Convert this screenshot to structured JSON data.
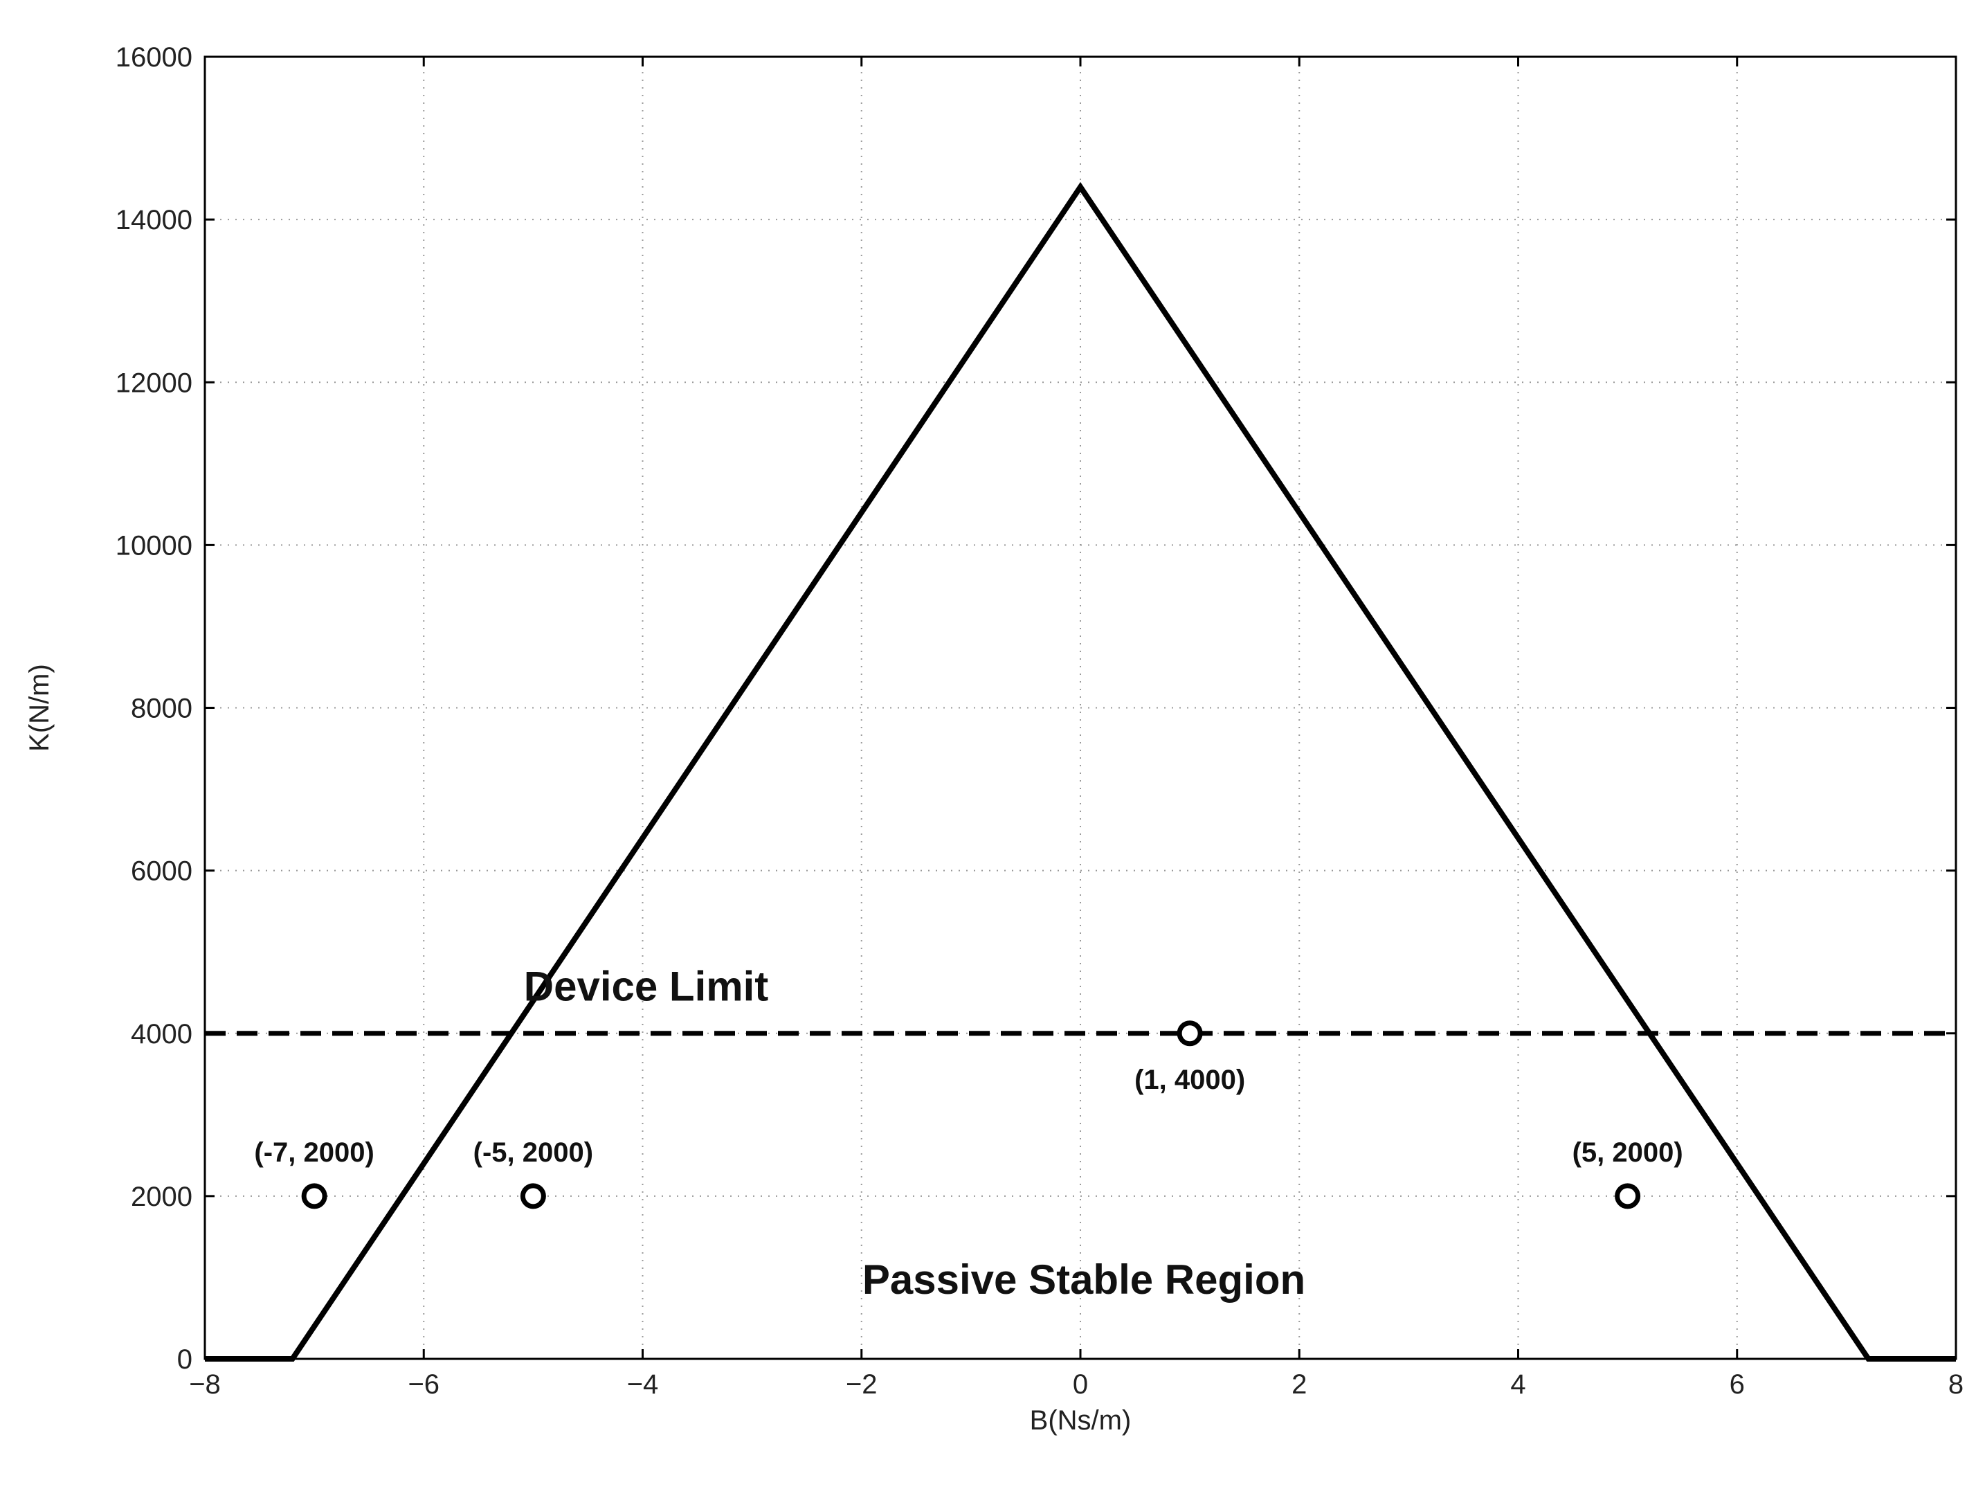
{
  "chart_data": {
    "type": "line",
    "title": "",
    "xlabel": "B(Ns/m)",
    "ylabel": "K(N/m)",
    "xlim": [
      -8,
      8
    ],
    "ylim": [
      0,
      16000
    ],
    "x_ticks": [
      -8,
      -6,
      -4,
      -2,
      0,
      2,
      4,
      6,
      8
    ],
    "x_tick_labels": [
      "−8",
      "−6",
      "−4",
      "−2",
      "0",
      "2",
      "4",
      "6",
      "8"
    ],
    "y_ticks": [
      0,
      2000,
      4000,
      6000,
      8000,
      10000,
      12000,
      14000,
      16000
    ],
    "y_tick_labels": [
      "0",
      "2000",
      "4000",
      "6000",
      "8000",
      "10000",
      "12000",
      "14000",
      "16000"
    ],
    "grid": true,
    "series": [
      {
        "style": "solid",
        "color": "#000000",
        "x": [
          -8,
          -7.2,
          0,
          7.2,
          8
        ],
        "y": [
          0,
          0,
          14400,
          0,
          0
        ]
      },
      {
        "style": "dashed",
        "color": "#000000",
        "x": [
          -8,
          8
        ],
        "y": [
          4000,
          4000
        ]
      }
    ],
    "points": [
      {
        "x": -7,
        "y": 2000,
        "label": "(-7,  2000)",
        "label_pos": "above"
      },
      {
        "x": -5,
        "y": 2000,
        "label": "(-5,  2000)",
        "label_pos": "above"
      },
      {
        "x": 1,
        "y": 4000,
        "label": "(1,  4000)",
        "label_pos": "below"
      },
      {
        "x": 5,
        "y": 2000,
        "label": "(5,  2000)",
        "label_pos": "above"
      }
    ],
    "annotations": [
      {
        "text": "Device Limit",
        "x": -4,
        "y": 4400
      },
      {
        "text": "Passive Stable Region",
        "x": 0,
        "y": 800
      }
    ]
  }
}
